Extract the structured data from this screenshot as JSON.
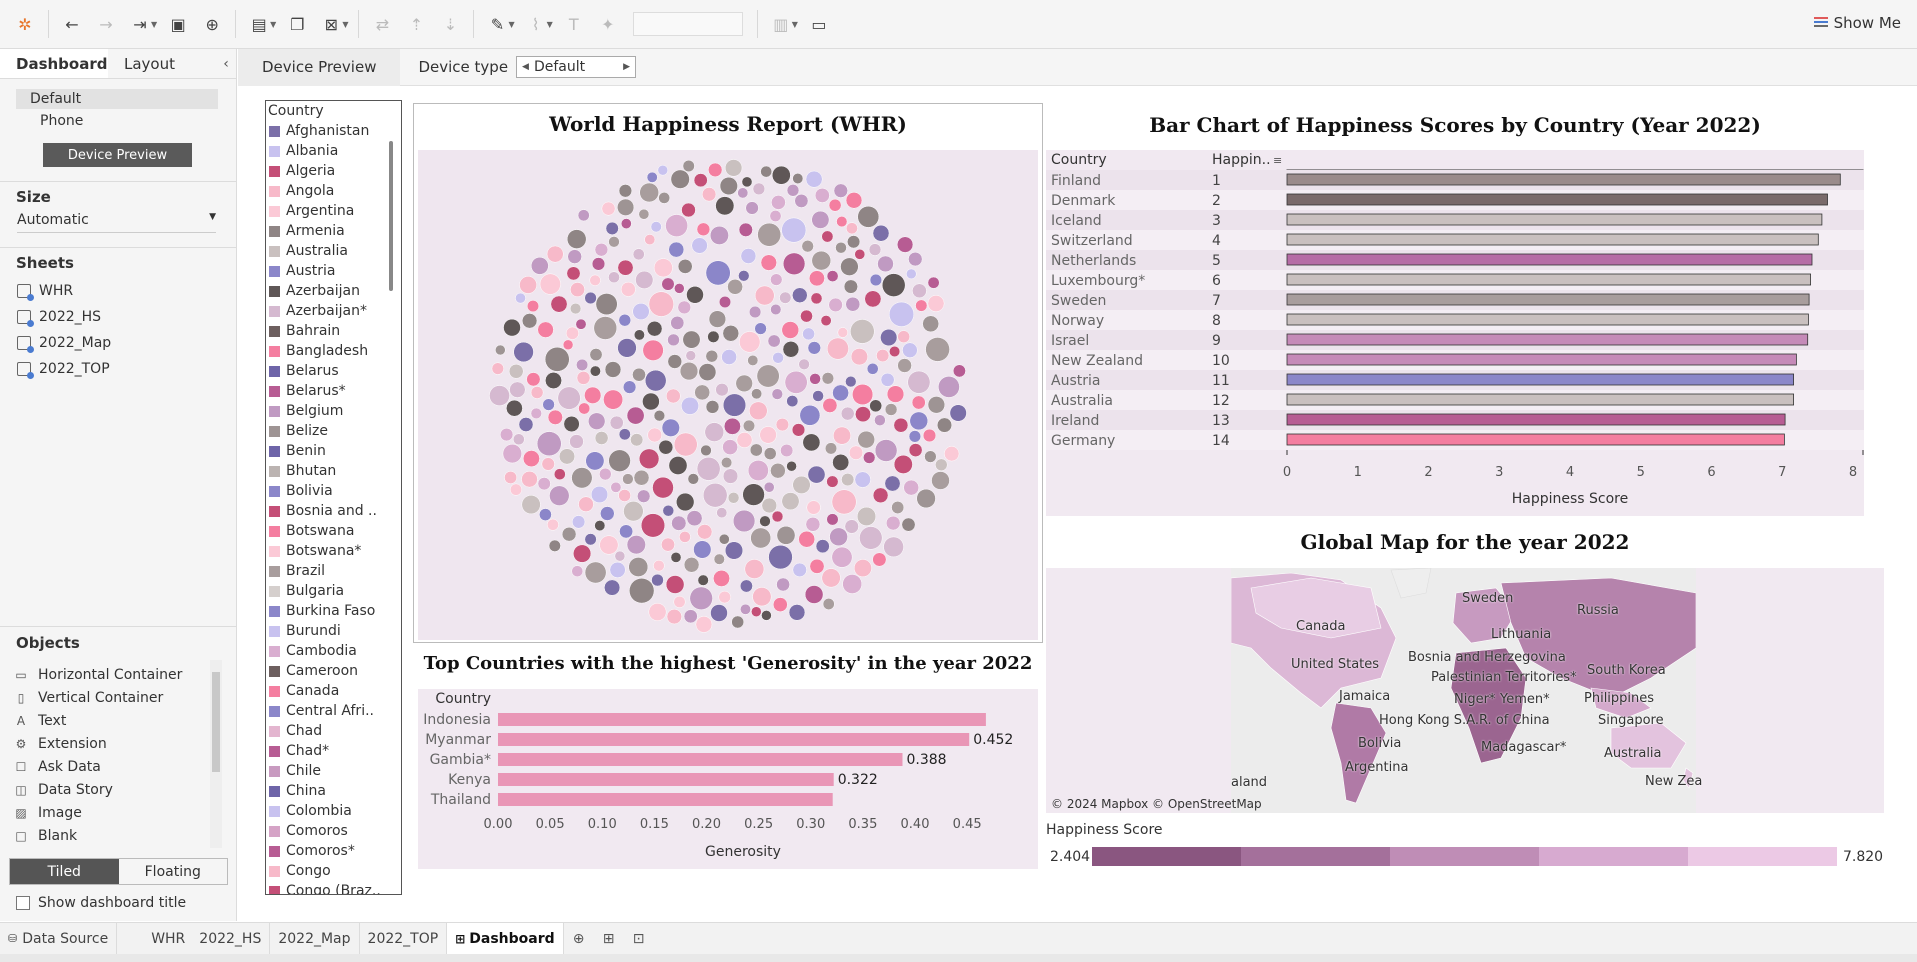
{
  "toolbar": {
    "show_me_label": "Show Me"
  },
  "left_panel": {
    "tabs": [
      "Dashboard",
      "Layout"
    ],
    "device_items": [
      "Default",
      "Phone"
    ],
    "device_preview_button": "Device Preview",
    "size_title": "Size",
    "size_value": "Automatic",
    "sheets_title": "Sheets",
    "sheets": [
      "WHR",
      "2022_HS",
      "2022_Map",
      "2022_TOP"
    ],
    "objects_title": "Objects",
    "objects": [
      {
        "label": "Horizontal Container",
        "icon": "horizontal-container-icon"
      },
      {
        "label": "Vertical Container",
        "icon": "vertical-container-icon"
      },
      {
        "label": "Text",
        "icon": "text-icon"
      },
      {
        "label": "Extension",
        "icon": "extension-icon"
      },
      {
        "label": "Ask Data",
        "icon": "ask-data-icon"
      },
      {
        "label": "Data Story",
        "icon": "data-story-icon"
      },
      {
        "label": "Image",
        "icon": "image-icon"
      },
      {
        "label": "Blank",
        "icon": "blank-icon"
      }
    ],
    "tiled_label": "Tiled",
    "floating_label": "Floating",
    "show_title_label": "Show dashboard title"
  },
  "device_bar": {
    "preview_tab": "Device Preview",
    "device_type_label": "Device type",
    "device_type_value": "Default"
  },
  "country_legend": {
    "title": "Country",
    "items": [
      {
        "name": "Afghanistan",
        "color": "#7b6fa8"
      },
      {
        "name": "Albania",
        "color": "#c8c2ef"
      },
      {
        "name": "Algeria",
        "color": "#c44f77"
      },
      {
        "name": "Angola",
        "color": "#f7b9c9"
      },
      {
        "name": "Argentina",
        "color": "#fbc9d6"
      },
      {
        "name": "Armenia",
        "color": "#8f8585"
      },
      {
        "name": "Australia",
        "color": "#c9c0bf"
      },
      {
        "name": "Austria",
        "color": "#8b86c9"
      },
      {
        "name": "Azerbaijan",
        "color": "#5f5757"
      },
      {
        "name": "Azerbaijan*",
        "color": "#d5b9d0"
      },
      {
        "name": "Bahrain",
        "color": "#6d5f5f"
      },
      {
        "name": "Bangladesh",
        "color": "#f47ea0"
      },
      {
        "name": "Belarus",
        "color": "#6e64a8"
      },
      {
        "name": "Belarus*",
        "color": "#b75c93"
      },
      {
        "name": "Belgium",
        "color": "#c09ac2"
      },
      {
        "name": "Belize",
        "color": "#9e9494"
      },
      {
        "name": "Benin",
        "color": "#6e64a8"
      },
      {
        "name": "Bhutan",
        "color": "#bbb3b1"
      },
      {
        "name": "Bolivia",
        "color": "#8b86c9"
      },
      {
        "name": "Bosnia and ..",
        "color": "#c44f77"
      },
      {
        "name": "Botswana",
        "color": "#f47ea0"
      },
      {
        "name": "Botswana*",
        "color": "#fbc9d6"
      },
      {
        "name": "Brazil",
        "color": "#a89d9d"
      },
      {
        "name": "Bulgaria",
        "color": "#d5cfcd"
      },
      {
        "name": "Burkina Faso",
        "color": "#8b86c9"
      },
      {
        "name": "Burundi",
        "color": "#c8c2ef"
      },
      {
        "name": "Cambodia",
        "color": "#d9aed0"
      },
      {
        "name": "Cameroon",
        "color": "#6d5f5f"
      },
      {
        "name": "Canada",
        "color": "#f47ea0"
      },
      {
        "name": "Central Afri..",
        "color": "#8b86c9"
      },
      {
        "name": "Chad",
        "color": "#e3b5cf"
      },
      {
        "name": "Chad*",
        "color": "#b75c93"
      },
      {
        "name": "Chile",
        "color": "#c89ac0"
      },
      {
        "name": "China",
        "color": "#6e64a8"
      },
      {
        "name": "Colombia",
        "color": "#c8c2ef"
      },
      {
        "name": "Comoros",
        "color": "#d5a3c6"
      },
      {
        "name": "Comoros*",
        "color": "#b75c93"
      },
      {
        "name": "Congo",
        "color": "#f7b9c9"
      },
      {
        "name": "Congo (Braz..",
        "color": "#c44f77"
      }
    ]
  },
  "bubble_panel": {
    "title": "World Happiness Report (WHR)"
  },
  "bar_panel": {
    "title": "Bar Chart of Happiness Scores by Country (Year 2022)",
    "col_country": "Country",
    "col_rank": "Happin..",
    "x_axis_title": "Happiness Score"
  },
  "generosity_panel": {
    "title": "Top Countries with the highest 'Generosity' in the year 2022",
    "row_header": "Country",
    "x_axis_title": "Generosity"
  },
  "map_panel": {
    "title": "Global Map for the year 2022",
    "attribution": "© 2024 Mapbox © OpenStreetMap",
    "labels": [
      {
        "text": "Sweden"
      },
      {
        "text": "Russia"
      },
      {
        "text": "Canada"
      },
      {
        "text": "Lithuania"
      },
      {
        "text": "Bosnia and Herzegovina"
      },
      {
        "text": "United States"
      },
      {
        "text": "Palestinian Territories*"
      },
      {
        "text": "South Korea"
      },
      {
        "text": "Jamaica"
      },
      {
        "text": "Niger*"
      },
      {
        "text": "Yemen*"
      },
      {
        "text": "Philippines"
      },
      {
        "text": "Hong Kong S.A.R. of China"
      },
      {
        "text": "Singapore"
      },
      {
        "text": "Bolivia"
      },
      {
        "text": "Madagascar*"
      },
      {
        "text": "Australia"
      },
      {
        "text": "Argentina"
      },
      {
        "text": "aland"
      },
      {
        "text": "New Zea"
      }
    ],
    "legend_title": "Happiness Score",
    "legend_min": "2.404",
    "legend_max": "7.820",
    "legend_colors": [
      "#8a5680",
      "#a4709b",
      "#bf8db6",
      "#d7aad0",
      "#ecc9e5"
    ]
  },
  "chart_data": [
    {
      "type": "scatter",
      "title": "World Happiness Report (WHR)",
      "note_type": "packed-bubble",
      "colors": [
        "#7b6fa8",
        "#c8c2ef",
        "#c44f77",
        "#f7b9c9",
        "#fbc9d6",
        "#8f8585",
        "#c9c0bf",
        "#8b86c9",
        "#5f5757",
        "#d5b9d0",
        "#f47ea0",
        "#b75c93",
        "#c09ac2",
        "#9e9494",
        "#d9aed0",
        "#a89d9d"
      ]
    },
    {
      "type": "bar",
      "title": "Bar Chart of Happiness Scores by Country (Year 2022)",
      "xlabel": "Happiness Score",
      "xlim": [
        0,
        8
      ],
      "x_ticks": [
        0,
        1,
        2,
        3,
        4,
        5,
        6,
        7,
        8
      ],
      "categories": [
        "Finland",
        "Denmark",
        "Iceland",
        "Switzerland",
        "Netherlands",
        "Luxembourg*",
        "Sweden",
        "Norway",
        "Israel",
        "New Zealand",
        "Austria",
        "Australia",
        "Ireland",
        "Germany"
      ],
      "ranks": [
        1,
        2,
        3,
        4,
        5,
        6,
        7,
        8,
        9,
        10,
        11,
        12,
        13,
        14
      ],
      "values": [
        7.82,
        7.64,
        7.56,
        7.51,
        7.42,
        7.4,
        7.38,
        7.37,
        7.36,
        7.2,
        7.16,
        7.16,
        7.04,
        7.03
      ],
      "bar_colors": [
        "#9a8b8b",
        "#7a6b6b",
        "#c9c0bf",
        "#c9c0bf",
        "#b66ca6",
        "#c9c0bf",
        "#a89d9d",
        "#c9c0bf",
        "#c58ab8",
        "#c58ab8",
        "#8b86c9",
        "#c9c0bf",
        "#b75c93",
        "#f47ea0"
      ]
    },
    {
      "type": "bar",
      "orientation": "horizontal",
      "title": "Top Countries with the highest 'Generosity' in the year 2022",
      "xlabel": "Generosity",
      "xlim": [
        0,
        0.47
      ],
      "x_ticks": [
        "0.00",
        "0.05",
        "0.10",
        "0.15",
        "0.20",
        "0.25",
        "0.30",
        "0.35",
        "0.40",
        "0.45"
      ],
      "categories": [
        "Indonesia",
        "Myanmar",
        "Gambia*",
        "Kenya",
        "Thailand"
      ],
      "values": [
        0.468,
        0.452,
        0.388,
        0.322,
        0.321
      ],
      "data_labels": [
        "",
        "0.452",
        "0.388",
        "0.322",
        ""
      ],
      "color": "#e996b6"
    }
  ],
  "bottom_tabs": {
    "data_source": "Data Source",
    "tabs": [
      "WHR",
      "2022_HS",
      "2022_Map",
      "2022_TOP",
      "Dashboard"
    ]
  }
}
